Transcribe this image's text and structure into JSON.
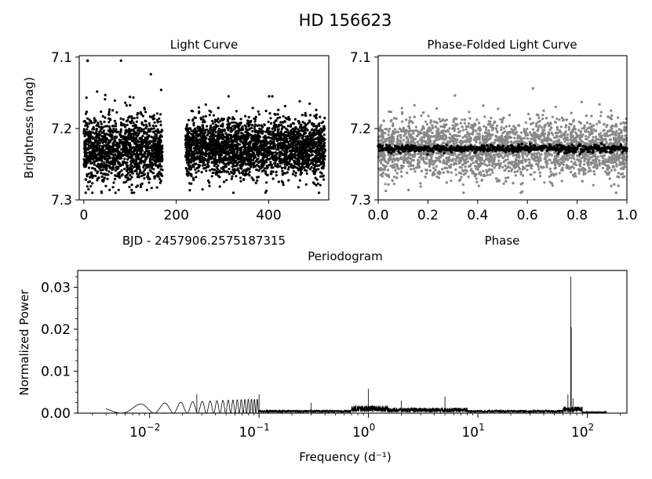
{
  "figure": {
    "title": "HD 156623"
  },
  "chart_data": [
    {
      "type": "scatter",
      "title": "Light Curve",
      "xlabel": "BJD - 2457906.2575187315",
      "ylabel": "Brightness (mag)",
      "xlim": [
        -10,
        530
      ],
      "ylim": [
        7.3,
        7.098
      ],
      "y_inverted": true,
      "xticks": [
        0,
        200,
        400
      ],
      "xtick_labels": [
        "0",
        "200",
        "400"
      ],
      "yticks": [
        7.1,
        7.2,
        7.3
      ],
      "ytick_labels": [
        "7.1",
        "7.2",
        "7.3"
      ],
      "point_color": "#000000",
      "series": [
        {
          "segments": [
            {
              "x_range": [
                0,
                170
              ],
              "y_mean": 7.23,
              "y_spread": 0.022,
              "y_min": 7.105,
              "y_max": 7.29
            },
            {
              "x_range": [
                220,
                522
              ],
              "y_mean": 7.227,
              "y_spread": 0.02,
              "y_min": 7.155,
              "y_max": 7.29
            }
          ]
        }
      ]
    },
    {
      "type": "scatter",
      "title": "Phase-Folded Light Curve",
      "xlabel": "Phase",
      "ylabel": "",
      "xlim": [
        0.0,
        1.0
      ],
      "ylim": [
        7.3,
        7.098
      ],
      "y_inverted": true,
      "xticks": [
        0.0,
        0.2,
        0.4,
        0.6,
        0.8,
        1.0
      ],
      "xtick_labels": [
        "0.0",
        "0.2",
        "0.4",
        "0.6",
        "0.8",
        "1.0"
      ],
      "yticks": [
        7.1,
        7.2,
        7.3
      ],
      "ytick_labels": [
        "7.1",
        "7.2",
        "7.3"
      ],
      "series": [
        {
          "kind": "raw",
          "color": "#888888",
          "y_mean": 7.228,
          "y_spread": 0.02,
          "y_min": 7.105,
          "y_max": 7.29
        },
        {
          "kind": "binned",
          "color": "#000000",
          "y_mean": 7.228,
          "y_spread": 0.0025
        }
      ]
    },
    {
      "type": "line",
      "title": "Periodogram",
      "xlabel": "Frequency (d⁻¹)",
      "ylabel": "Normalized Power",
      "xscale": "log",
      "xlim": [
        0.0022,
        230
      ],
      "ylim": [
        0.0,
        0.034
      ],
      "xticks": [
        0.01,
        0.1,
        1,
        10,
        100
      ],
      "xtick_labels": [
        {
          "base": "10",
          "exp": "−2"
        },
        {
          "base": "10",
          "exp": "−1"
        },
        {
          "base": "10",
          "exp": "0"
        },
        {
          "base": "10",
          "exp": "1"
        },
        {
          "base": "10",
          "exp": "2"
        }
      ],
      "yticks": [
        0.0,
        0.01,
        0.02,
        0.03
      ],
      "ytick_labels": [
        "0.00",
        "0.01",
        "0.02",
        "0.03"
      ],
      "line_color": "#000000",
      "freq_range": [
        0.004,
        150
      ],
      "peaks": [
        {
          "freq": 70.6,
          "power": 0.0325
        },
        {
          "freq": 71.3,
          "power": 0.0205
        },
        {
          "freq": 66.5,
          "power": 0.0045
        },
        {
          "freq": 74.0,
          "power": 0.0035
        },
        {
          "freq": 1.0,
          "power": 0.0058
        },
        {
          "freq": 0.1,
          "power": 0.0045
        },
        {
          "freq": 5.0,
          "power": 0.004
        },
        {
          "freq": 0.027,
          "power": 0.0045
        },
        {
          "freq": 2.0,
          "power": 0.003
        },
        {
          "freq": 0.3,
          "power": 0.0025
        }
      ]
    }
  ]
}
